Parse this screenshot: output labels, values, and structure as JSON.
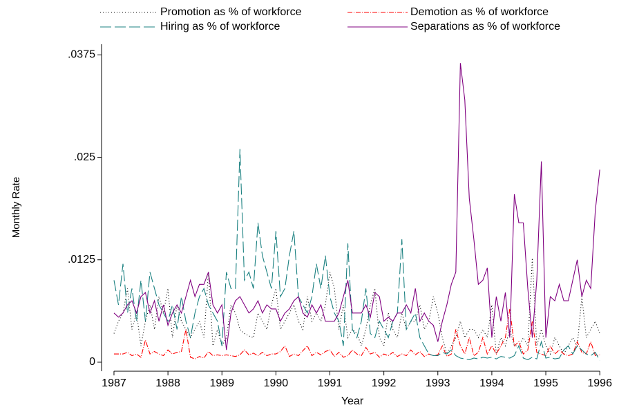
{
  "chart_data": {
    "type": "line",
    "ylabel": "Monthly Rate",
    "xlabel": "Year",
    "xlim": [
      1986.77,
      1996.1
    ],
    "xticks": [
      1987,
      1988,
      1989,
      1990,
      1991,
      1992,
      1993,
      1994,
      1995,
      1996
    ],
    "ylim": [
      -0.0011,
      0.0388
    ],
    "yticks": [
      0,
      {
        "value": 0.0125,
        "label": ".0125"
      },
      {
        "value": 0.025,
        "label": ".025"
      },
      {
        "value": 0.0375,
        "label": ".0375"
      }
    ],
    "x": [
      1987,
      1987.083,
      1987.167,
      1987.25,
      1987.333,
      1987.417,
      1987.5,
      1987.583,
      1987.667,
      1987.75,
      1987.833,
      1987.917,
      1988,
      1988.083,
      1988.167,
      1988.25,
      1988.333,
      1988.417,
      1988.5,
      1988.583,
      1988.667,
      1988.75,
      1988.833,
      1988.917,
      1989,
      1989.083,
      1989.167,
      1989.25,
      1989.333,
      1989.417,
      1989.5,
      1989.583,
      1989.667,
      1989.75,
      1989.833,
      1989.917,
      1990,
      1990.083,
      1990.167,
      1990.25,
      1990.333,
      1990.417,
      1990.5,
      1990.583,
      1990.667,
      1990.75,
      1990.833,
      1990.917,
      1991,
      1991.083,
      1991.167,
      1991.25,
      1991.333,
      1991.417,
      1991.5,
      1991.583,
      1991.667,
      1991.75,
      1991.833,
      1991.917,
      1992,
      1992.083,
      1992.167,
      1992.25,
      1992.333,
      1992.417,
      1992.5,
      1992.583,
      1992.667,
      1992.75,
      1992.833,
      1992.917,
      1993,
      1993.083,
      1993.167,
      1993.25,
      1993.333,
      1993.417,
      1993.5,
      1993.583,
      1993.667,
      1993.75,
      1993.833,
      1993.917,
      1994,
      1994.083,
      1994.167,
      1994.25,
      1994.333,
      1994.417,
      1994.5,
      1994.583,
      1994.667,
      1994.75,
      1994.833,
      1994.917,
      1995,
      1995.083,
      1995.167,
      1995.25,
      1995.333,
      1995.417,
      1995.5,
      1995.583,
      1995.667,
      1995.75,
      1995.833,
      1995.917,
      1996
    ],
    "series": [
      {
        "name": "Promotion as % of workforce",
        "color": "#000000",
        "dash": "1,3",
        "values": [
          0.0035,
          0.005,
          0.006,
          0.009,
          0.004,
          0.006,
          0.002,
          0.005,
          0.007,
          0.004,
          0.008,
          0.006,
          0.009,
          0.003,
          0.007,
          0.005,
          0.004,
          0.003,
          0.004,
          0.005,
          0.003,
          0.011,
          0.002,
          0.004,
          0.002,
          0.003,
          0.007,
          0.006,
          0.004,
          0.0035,
          0.0032,
          0.003,
          0.006,
          0.005,
          0.004,
          0.007,
          0.009,
          0.004,
          0.005,
          0.006,
          0.007,
          0.005,
          0.004,
          0.008,
          0.005,
          0.006,
          0.005,
          0.007,
          0.011,
          0.009,
          0.004,
          0.007,
          0.003,
          0.004,
          0.0035,
          0.002,
          0.004,
          0.007,
          0.009,
          0.003,
          0.002,
          0.006,
          0.004,
          0.003,
          0.006,
          0.004,
          0.005,
          0.005,
          0.007,
          0.004,
          0.005,
          0.008,
          0.006,
          0.003,
          0.001,
          0.002,
          0.003,
          0.005,
          0.003,
          0.004,
          0.004,
          0.003,
          0.004,
          0.003,
          0.007,
          0.001,
          0.003,
          0.002,
          0.004,
          0.002,
          0.002,
          0.003,
          0.002,
          0.0127,
          0.002,
          0.004,
          0.002,
          0.001,
          0.003,
          0.002,
          0.001,
          0.002,
          0.003,
          0.002,
          0.008,
          0.003,
          0.004,
          0.005,
          0.0035
        ]
      },
      {
        "name": "Demotion as % of workforce",
        "color": "#ff0000",
        "dash": "7,2,1,2",
        "values": [
          0.001,
          0.001,
          0.001,
          0.0012,
          0.0008,
          0.001,
          0.0006,
          0.0027,
          0.001,
          0.0013,
          0.001,
          0.0008,
          0.0015,
          0.001,
          0.0012,
          0.0013,
          0.004,
          0.0006,
          0.0004,
          0.0007,
          0.0005,
          0.0013,
          0.0008,
          0.0009,
          0.0008,
          0.0009,
          0.0008,
          0.0007,
          0.0009,
          0.0015,
          0.0009,
          0.0011,
          0.0008,
          0.0012,
          0.0008,
          0.001,
          0.001,
          0.0013,
          0.002,
          0.0007,
          0.001,
          0.0008,
          0.0014,
          0.002,
          0.0008,
          0.0012,
          0.0009,
          0.0013,
          0.0015,
          0.0007,
          0.0012,
          0.0006,
          0.0008,
          0.0015,
          0.001,
          0.0008,
          0.0018,
          0.001,
          0.0012,
          0.0006,
          0.001,
          0.0008,
          0.0012,
          0.0007,
          0.001,
          0.0008,
          0.0015,
          0.0009,
          0.0013,
          0.0007,
          0.001,
          0.0008,
          0.0009,
          0.002,
          0.0007,
          0.001,
          0.004,
          0.002,
          0.001,
          0.003,
          0.0008,
          0.0012,
          0.003,
          0.001,
          0.002,
          0.001,
          0.002,
          0.003,
          0.0065,
          0.002,
          0.0025,
          0.001,
          0.0015,
          0.005,
          0.0012,
          0.001,
          0.0008,
          0.002,
          0.001,
          0.0015,
          0.001,
          0.0008,
          0.001,
          0.0025,
          0.0012,
          0.001,
          0.0025,
          0.0008,
          0.0009
        ]
      },
      {
        "name": "Hiring as % of workforce",
        "color": "#1a8080",
        "dash": "16,5",
        "values": [
          0.01,
          0.007,
          0.012,
          0.006,
          0.009,
          0.005,
          0.01,
          0.005,
          0.011,
          0.009,
          0.007,
          0.006,
          0.005,
          0.007,
          0.004,
          0.008,
          0.005,
          0.003,
          0.006,
          0.008,
          0.009,
          0.007,
          0.006,
          0.005,
          0.002,
          0.011,
          0.009,
          0.009,
          0.026,
          0.01,
          0.011,
          0.009,
          0.017,
          0.013,
          0.011,
          0.009,
          0.016,
          0.008,
          0.009,
          0.013,
          0.016,
          0.008,
          0.007,
          0.006,
          0.008,
          0.012,
          0.009,
          0.013,
          0.008,
          0.006,
          0.005,
          0.002,
          0.0145,
          0.004,
          0.003,
          0.005,
          0.009,
          0.0035,
          0.003,
          0.005,
          0.004,
          0.003,
          0.005,
          0.006,
          0.015,
          0.004,
          0.005,
          0.006,
          0.003,
          0.002,
          0.001,
          0.0008,
          0.0008,
          0.0012,
          0.001,
          0.0015,
          0.0008,
          0.0005,
          0.0004,
          0.0003,
          0.0005,
          0.0004,
          0.0006,
          0.0005,
          0.0006,
          0.0004,
          0.0007,
          0.0006,
          0.0005,
          0.0008,
          0.002,
          0.0005,
          0.0003,
          0.0006,
          0.0004,
          0.0025,
          0.0005,
          0.0006,
          0.0004,
          0.0005,
          0.0015,
          0.002,
          0.001,
          0.002,
          0.0015,
          0.001,
          0.0008,
          0.0012,
          0.0002
        ]
      },
      {
        "name": "Separations as % of workforce",
        "color": "#800080",
        "dash": "",
        "values": [
          0.006,
          0.0055,
          0.006,
          0.007,
          0.0075,
          0.006,
          0.008,
          0.0085,
          0.006,
          0.0075,
          0.005,
          0.007,
          0.0045,
          0.006,
          0.007,
          0.006,
          0.008,
          0.01,
          0.008,
          0.0095,
          0.0095,
          0.011,
          0.007,
          0.006,
          0.007,
          0.0015,
          0.006,
          0.0075,
          0.008,
          0.007,
          0.006,
          0.0065,
          0.0075,
          0.006,
          0.007,
          0.0065,
          0.0065,
          0.005,
          0.006,
          0.0065,
          0.0075,
          0.008,
          0.006,
          0.0055,
          0.007,
          0.006,
          0.007,
          0.005,
          0.005,
          0.005,
          0.006,
          0.008,
          0.01,
          0.006,
          0.006,
          0.006,
          0.007,
          0.0055,
          0.0085,
          0.008,
          0.005,
          0.0055,
          0.005,
          0.006,
          0.006,
          0.007,
          0.006,
          0.009,
          0.005,
          0.006,
          0.005,
          0.0045,
          0.0025,
          0.005,
          0.007,
          0.0095,
          0.011,
          0.0365,
          0.032,
          0.02,
          0.015,
          0.0095,
          0.01,
          0.0115,
          0.003,
          0.008,
          0.005,
          0.0085,
          0.003,
          0.0205,
          0.017,
          0.017,
          0.009,
          0.003,
          0.01,
          0.0245,
          0.003,
          0.008,
          0.0075,
          0.0095,
          0.0075,
          0.0075,
          0.01,
          0.0125,
          0.008,
          0.01,
          0.009,
          0.0185,
          0.0235
        ]
      }
    ]
  }
}
